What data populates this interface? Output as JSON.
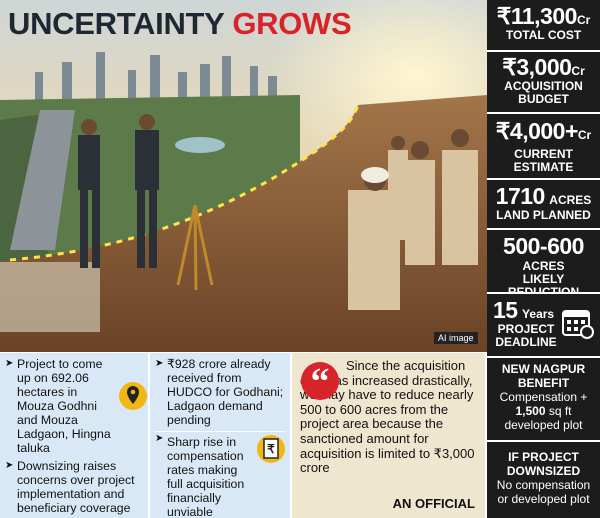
{
  "header": {
    "title_part1": "UNCERTAINTY",
    "title_part2": "GROWS"
  },
  "image_caption": "AI image",
  "stats": [
    {
      "value": "₹11,300",
      "unit": "Cr",
      "label": "TOTAL COST"
    },
    {
      "value": "₹3,000",
      "unit": "Cr",
      "label": "ACQUISITION BUDGET"
    },
    {
      "value": "₹4,000+",
      "unit": "Cr",
      "label": "CURRENT ESTIMATE"
    },
    {
      "value": "1710",
      "unit": "ACRES",
      "label": "LAND PLANNED"
    },
    {
      "value": "500-600",
      "unit": "ACRES",
      "label": "LIKELY REDUCTION"
    },
    {
      "value": "15",
      "unit": "Years",
      "label": "PROJECT DEADLINE"
    }
  ],
  "benefits": [
    {
      "heading": "NEW NAGPUR BENEFIT",
      "text_before": "Compensation +",
      "text_bold": "1,500",
      "text_after": "sq ft developed plot"
    },
    {
      "heading": "IF PROJECT DOWNSIZED",
      "text": "No compensation or developed plot"
    }
  ],
  "bullets": {
    "column1": [
      "Project to come up on 692.06 hectares in Mouza Godhni and Mouza Ladgaon, Hingna taluka",
      "Downsizing raises concerns over project implementation and beneficiary coverage"
    ],
    "column2": [
      "₹928 crore already received from HUDCO for Godhani; Ladgaon demand pending",
      "Sharp rise in compensation rates making full acquisition financially unviable"
    ]
  },
  "quote": {
    "text": "Since the acquisition cost has increased drastically, we may have to reduce nearly 500 to 600 acres from the project area because the sanctioned amount for acquisition is limited to ₹3,000 crore",
    "attribution": "AN OFFICIAL"
  }
}
